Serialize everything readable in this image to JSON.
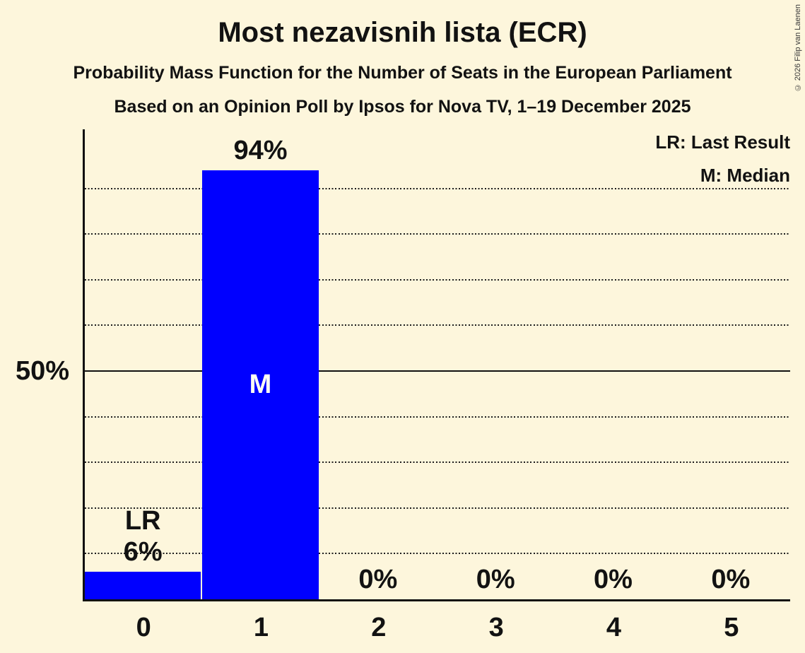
{
  "title": "Most nezavisnih lista (ECR)",
  "subtitle": "Probability Mass Function for the Number of Seats in the European Parliament",
  "source_line": "Based on an Opinion Poll by Ipsos for Nova TV, 1–19 December 2025",
  "copyright": "© 2026 Filip van Laenen",
  "colors": {
    "background": "#FDF6DC",
    "bar": "#0000FF",
    "text": "#121212",
    "on_bar_text": "#FFFFF3"
  },
  "chart_data": {
    "type": "bar",
    "title": "Most nezavisnih lista (ECR)",
    "categories": [
      "0",
      "1",
      "2",
      "3",
      "4",
      "5"
    ],
    "values": [
      6,
      94,
      0,
      0,
      0,
      0
    ],
    "bar_labels": [
      "6%",
      "94%",
      "0%",
      "0%",
      "0%",
      "0%"
    ],
    "annotations": [
      {
        "category": "0",
        "label": "LR",
        "position": "above"
      },
      {
        "category": "1",
        "label": "M",
        "position": "inside"
      }
    ],
    "legend": {
      "lr": "LR: Last Result",
      "m": "M: Median"
    },
    "ytick_label": "50%",
    "ytick_value": 50,
    "solid_gridline_pct": 50,
    "dotted_gridlines_pct": [
      10,
      20,
      30,
      40,
      60,
      70,
      80,
      90
    ],
    "ylim": [
      0,
      100
    ],
    "xlabel": "",
    "ylabel": "",
    "legend_position": "top-right",
    "grid": "horizontal-dotted"
  }
}
